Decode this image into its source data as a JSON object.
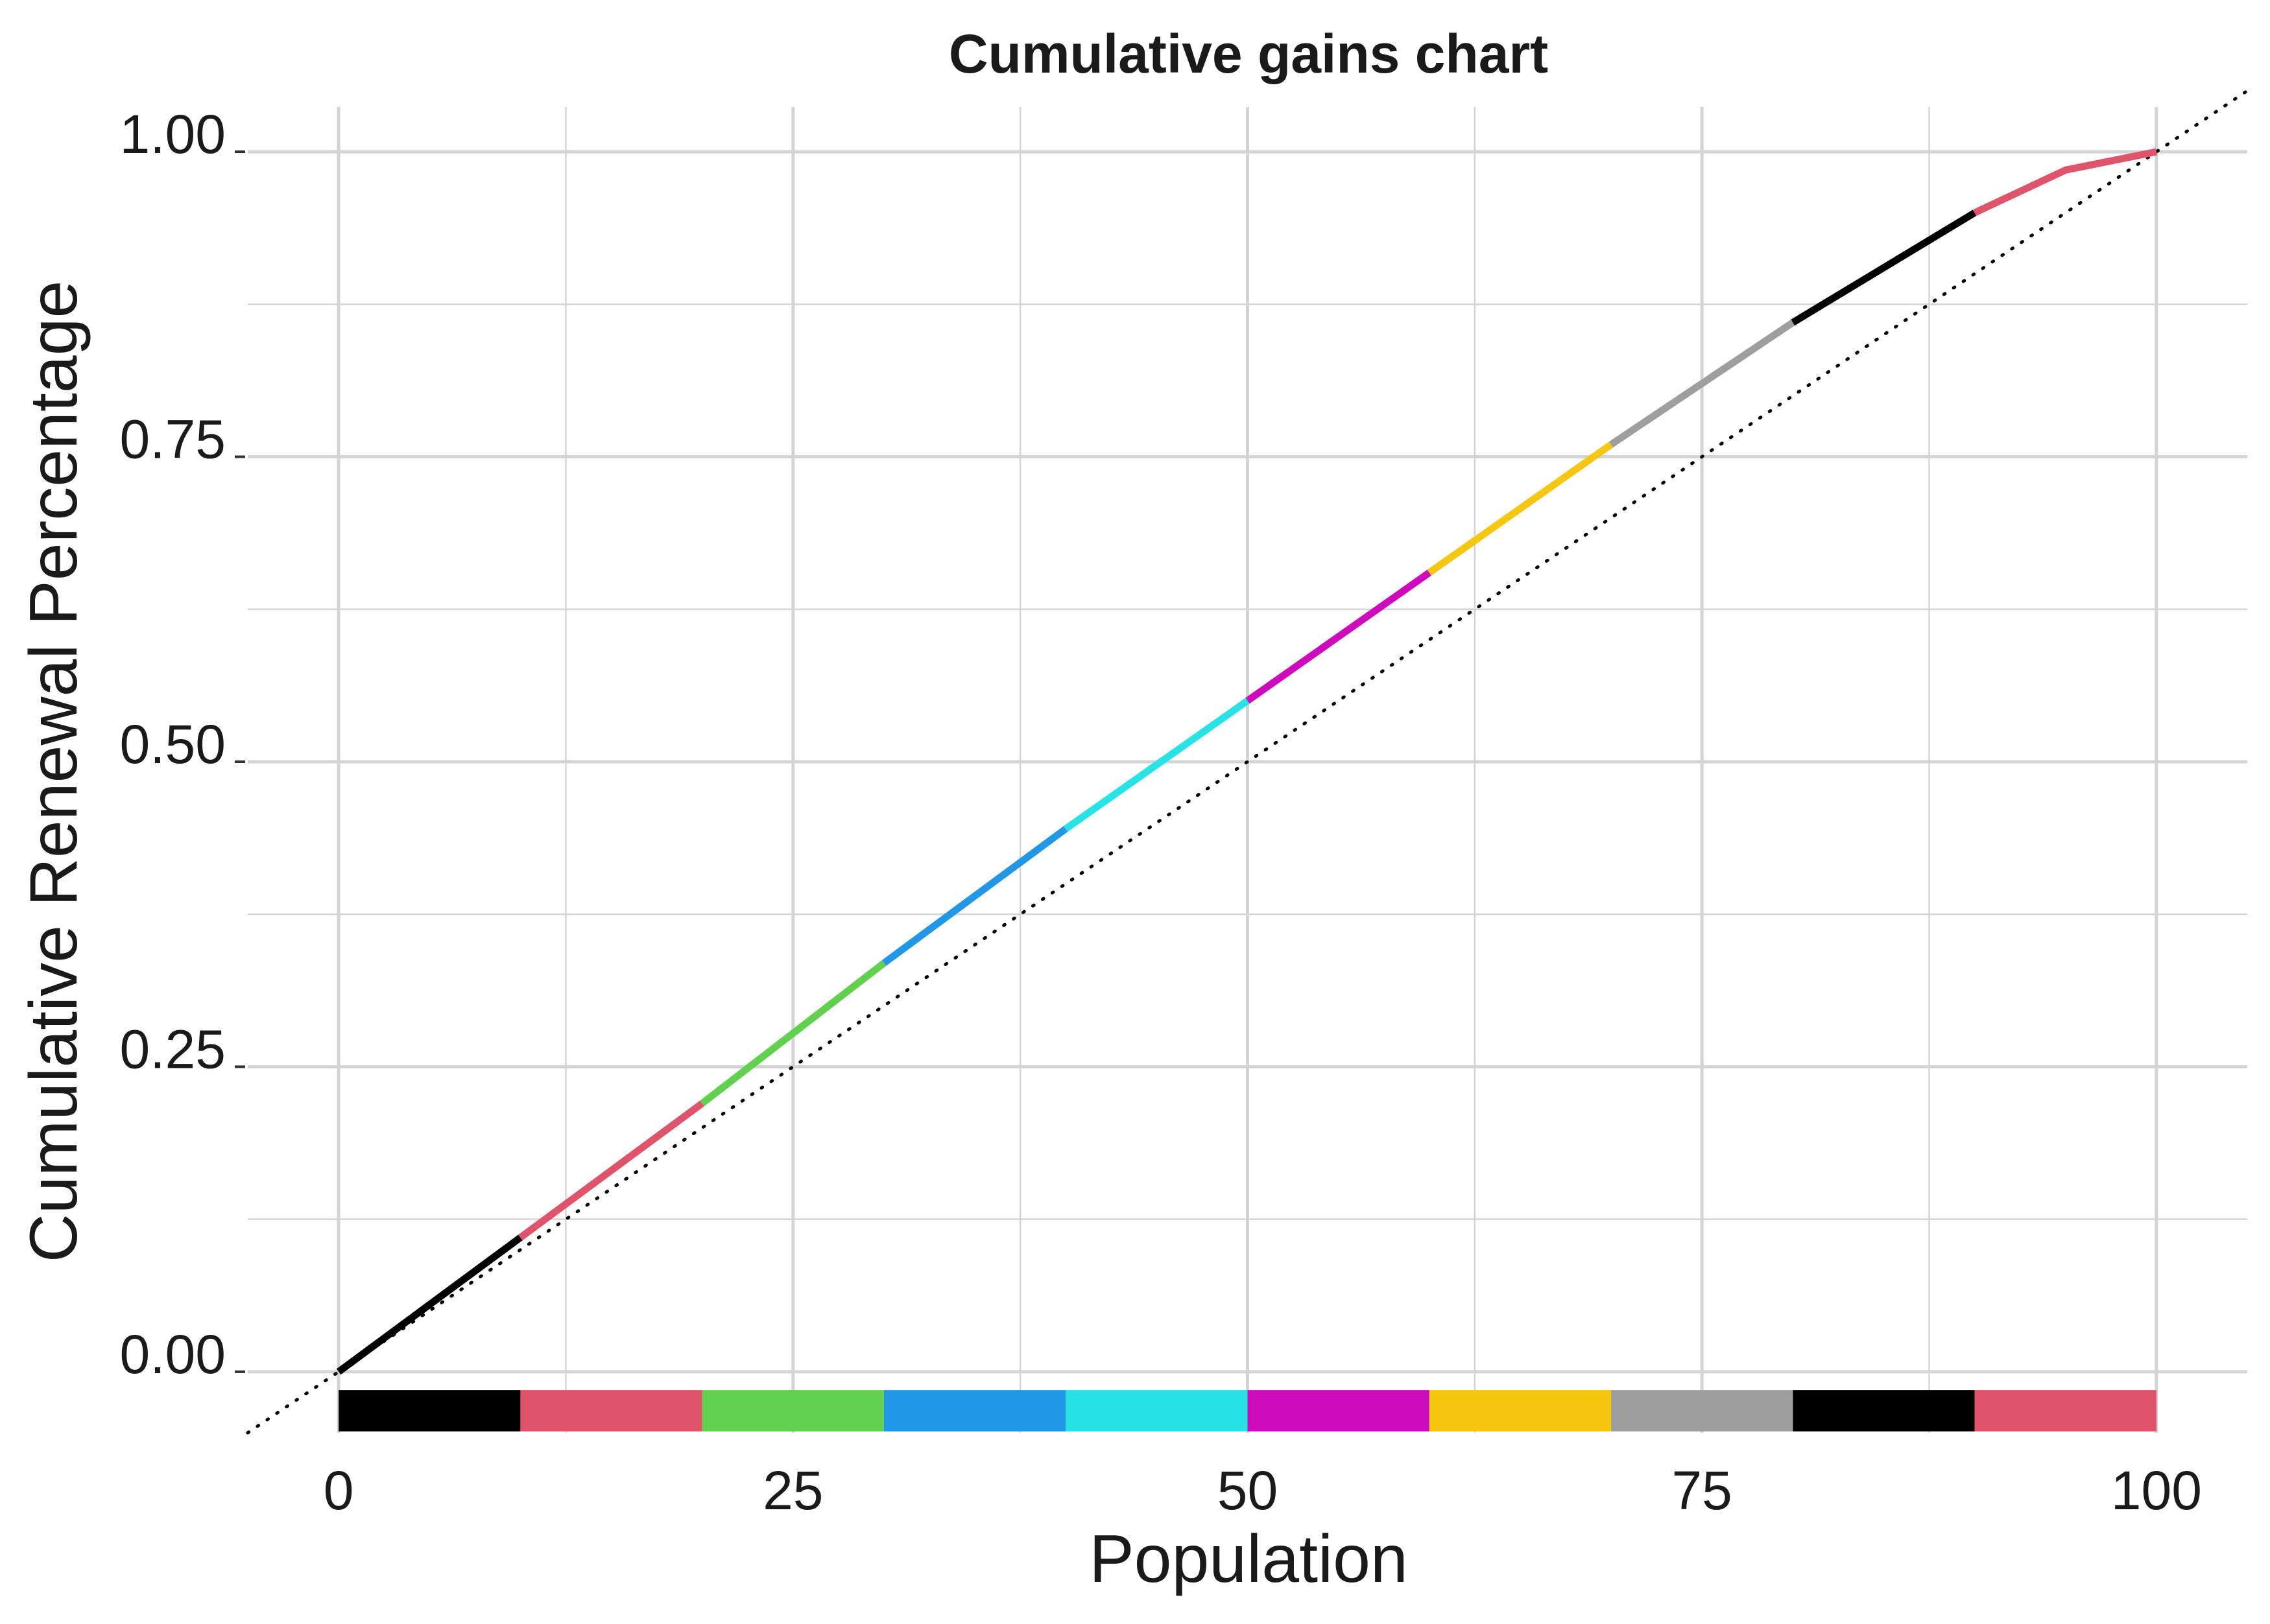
{
  "chart_data": {
    "type": "line",
    "title": "Cumulative gains chart",
    "xlabel": "Population",
    "ylabel": "Cumulative Renewal Percentage",
    "xlim": [
      -5,
      105
    ],
    "ylim": [
      -0.05,
      1.05
    ],
    "xticks": [
      "0",
      "25",
      "50",
      "75",
      "100"
    ],
    "xtick_values": [
      0,
      25,
      50,
      75,
      100
    ],
    "yticks": [
      "0.00",
      "0.25",
      "0.50",
      "0.75",
      "1.00"
    ],
    "ytick_values": [
      0,
      0.25,
      0.5,
      0.75,
      1.0
    ],
    "grid": true,
    "legend": "none",
    "reference_line": {
      "style": "dotted",
      "x": [
        -5,
        105
      ],
      "y": [
        -0.05,
        1.05
      ]
    },
    "x": [
      0,
      10,
      20,
      30,
      40,
      50,
      60,
      70,
      80,
      90,
      95,
      100
    ],
    "y": [
      0,
      0.11,
      0.22,
      0.335,
      0.445,
      0.55,
      0.655,
      0.76,
      0.86,
      0.95,
      0.985,
      1.0
    ],
    "segments": [
      {
        "from": 0,
        "to": 10,
        "color": "#000000"
      },
      {
        "from": 10,
        "to": 20,
        "color": "#DF536B"
      },
      {
        "from": 20,
        "to": 30,
        "color": "#61D04F"
      },
      {
        "from": 30,
        "to": 40,
        "color": "#2297E6"
      },
      {
        "from": 40,
        "to": 50,
        "color": "#28E2E5"
      },
      {
        "from": 50,
        "to": 60,
        "color": "#CD0BBC"
      },
      {
        "from": 60,
        "to": 70,
        "color": "#F5C710"
      },
      {
        "from": 70,
        "to": 80,
        "color": "#9E9E9E"
      },
      {
        "from": 80,
        "to": 90,
        "color": "#000000"
      },
      {
        "from": 90,
        "to": 100,
        "color": "#DF536B"
      }
    ]
  }
}
